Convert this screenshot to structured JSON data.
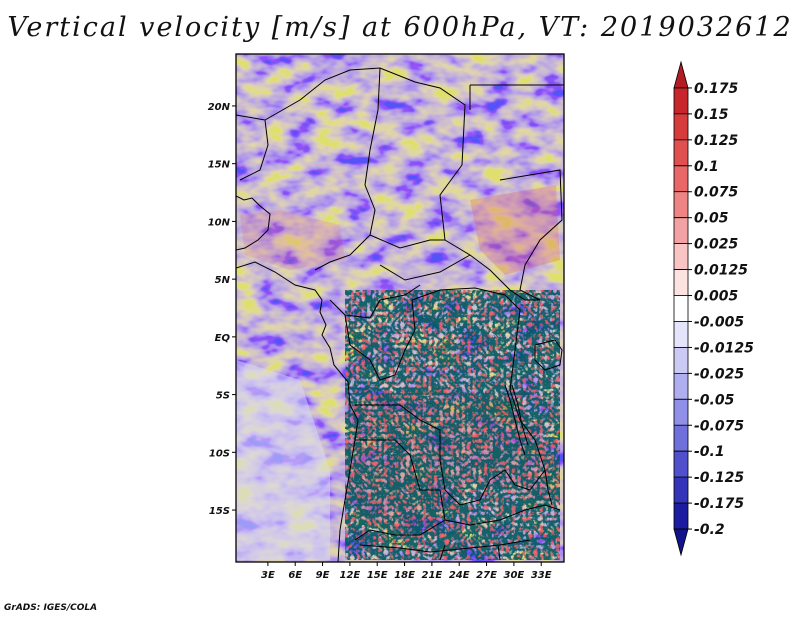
{
  "title": "Vertical velocity [m/s] at 600hPa, VT: 2019032612",
  "footer": "GrADS: IGES/COLA",
  "chart_data": {
    "type": "heatmap",
    "variable": "Vertical velocity",
    "units": "m/s",
    "level": "600hPa",
    "valid_time": "2019032612",
    "lon_range": [
      -0.5,
      35.5
    ],
    "lat_range": [
      -19.5,
      24.5
    ],
    "x_ticks": [
      "3E",
      "6E",
      "9E",
      "12E",
      "15E",
      "18E",
      "21E",
      "24E",
      "27E",
      "30E",
      "33E"
    ],
    "x_tick_values": [
      3,
      6,
      9,
      12,
      15,
      18,
      21,
      24,
      27,
      30,
      33
    ],
    "y_ticks": [
      "20N",
      "15N",
      "10N",
      "5N",
      "EQ",
      "5S",
      "10S",
      "15S"
    ],
    "y_tick_values": [
      20,
      15,
      10,
      5,
      0,
      -5,
      -10,
      -15
    ],
    "colorbar": {
      "labels": [
        "0.175",
        "0.15",
        "0.125",
        "0.1",
        "0.075",
        "0.05",
        "0.025",
        "0.0125",
        "0.005",
        "-0.005",
        "-0.0125",
        "-0.025",
        "-0.05",
        "-0.075",
        "-0.1",
        "-0.125",
        "-0.175",
        "-0.2"
      ],
      "colors": [
        "#b21c22",
        "#c8262c",
        "#d63c3c",
        "#e05050",
        "#e86868",
        "#ee8484",
        "#f2a2a2",
        "#f8c4c4",
        "#fde2e2",
        "#ffffff",
        "#e4e4fb",
        "#cacaf4",
        "#aeaef0",
        "#9090e8",
        "#7070dc",
        "#5050cc",
        "#3434b8",
        "#1c1ca0",
        "#12128a"
      ]
    },
    "grid": false
  }
}
